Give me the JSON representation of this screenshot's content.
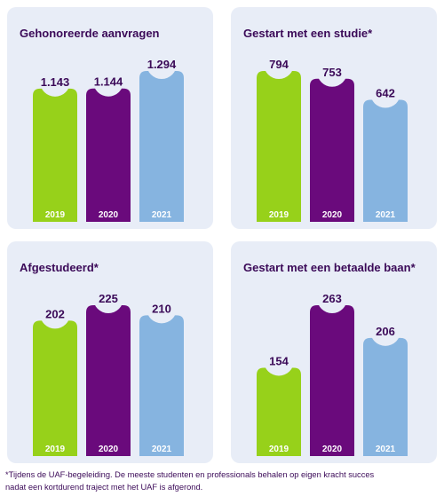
{
  "chart_data": [
    {
      "type": "bar",
      "title": "Gehonoreerde aanvragen",
      "categories": [
        "2019",
        "2020",
        "2021"
      ],
      "values": [
        1143,
        1144,
        1294
      ],
      "value_labels": [
        "1.143",
        "1.144",
        "1.294"
      ],
      "ylim": [
        0,
        1294
      ]
    },
    {
      "type": "bar",
      "title": "Gestart met een studie*",
      "categories": [
        "2019",
        "2020",
        "2021"
      ],
      "values": [
        794,
        753,
        642
      ],
      "value_labels": [
        "794",
        "753",
        "642"
      ],
      "ylim": [
        0,
        794
      ]
    },
    {
      "type": "bar",
      "title": "Afgestudeerd*",
      "categories": [
        "2019",
        "2020",
        "2021"
      ],
      "values": [
        202,
        225,
        210
      ],
      "value_labels": [
        "202",
        "225",
        "210"
      ],
      "ylim": [
        0,
        225
      ]
    },
    {
      "type": "bar",
      "title": "Gestart met een betaalde baan*",
      "categories": [
        "2019",
        "2020",
        "2021"
      ],
      "values": [
        154,
        263,
        206
      ],
      "value_labels": [
        "154",
        "263",
        "206"
      ],
      "ylim": [
        0,
        263
      ]
    }
  ],
  "colors": {
    "bar_2019": "#97d11a",
    "bar_2020": "#6a0a7c",
    "bar_2021": "#86b4e0",
    "text_dark": "#3b0a58",
    "panel_bg": "#e8edf7"
  },
  "footnote": "*Tijdens de UAF-begeleiding. De meeste studenten en professionals behalen op eigen kracht succes\nnadat een kortdurend traject met het UAF is afgerond."
}
